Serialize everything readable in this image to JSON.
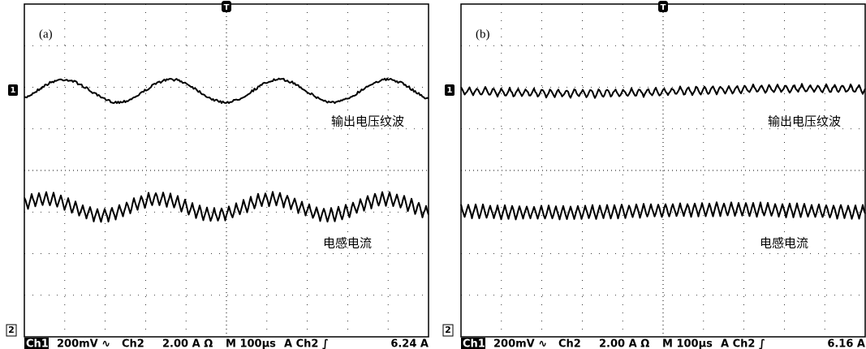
{
  "panels": [
    {
      "label": "(a)",
      "trigger": "T",
      "ch1_marker": "1",
      "ch2_marker": "2",
      "voltage_label": "输出电压纹波",
      "current_label": "电感电流",
      "status": [
        "Ch1",
        "200mV ∿",
        "Ch2",
        "2.00 A Ω",
        "M 100µs",
        "A  Ch2 ∫",
        "6.24 A"
      ]
    },
    {
      "label": "(b)",
      "trigger": "T",
      "ch1_marker": "1",
      "ch2_marker": "2",
      "voltage_label": "输出电压纹波",
      "current_label": "电感电流",
      "status": [
        "Ch1",
        "200mV ∿",
        "Ch2",
        "2.00 A Ω",
        "M 100µs",
        "A  Ch2 ∫",
        "6.16 A"
      ]
    }
  ]
}
